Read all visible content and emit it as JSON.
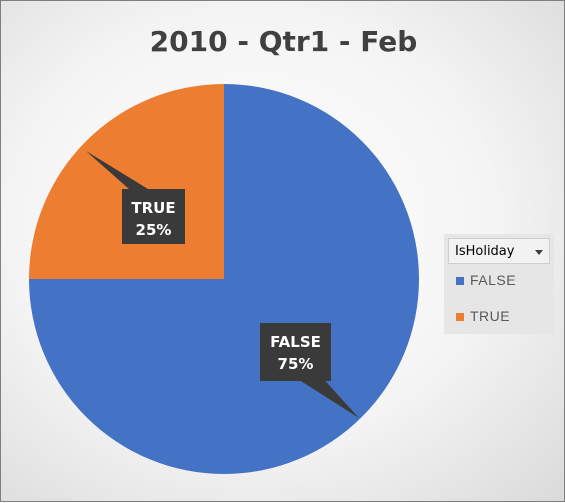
{
  "chart_data": {
    "type": "pie",
    "title": "2010 - Qtr1 - Feb",
    "categories": [
      "FALSE",
      "TRUE"
    ],
    "values": [
      75,
      25
    ],
    "value_labels": [
      "75%",
      "25%"
    ],
    "colors": [
      "#4472c4",
      "#ed7d31"
    ],
    "legend": {
      "title": "IsHoliday",
      "placement": "right"
    }
  }
}
